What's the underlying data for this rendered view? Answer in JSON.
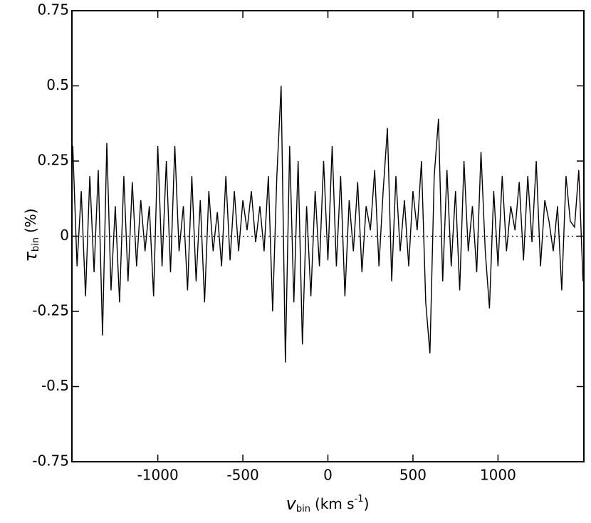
{
  "chart_data": {
    "type": "line",
    "x_label": {
      "symbol": "v",
      "subscript": "bin",
      "unit": "(km s",
      "superscript": "-1",
      "close": ")"
    },
    "y_label": {
      "symbol": "τ",
      "subscript": "bin",
      "unit": "(%)"
    },
    "xlim": [
      -1505,
      1505
    ],
    "ylim": [
      -0.75,
      0.75
    ],
    "xticks": [
      -1000,
      -500,
      0,
      500,
      1000
    ],
    "yticks": [
      -0.75,
      -0.5,
      -0.25,
      0,
      0.25,
      0.5,
      0.75
    ],
    "reference_line": 0,
    "x": [
      -1500,
      -1475,
      -1450,
      -1425,
      -1400,
      -1375,
      -1350,
      -1325,
      -1300,
      -1275,
      -1250,
      -1225,
      -1200,
      -1175,
      -1150,
      -1125,
      -1100,
      -1075,
      -1050,
      -1025,
      -1000,
      -975,
      -950,
      -925,
      -900,
      -875,
      -850,
      -825,
      -800,
      -775,
      -750,
      -725,
      -700,
      -675,
      -650,
      -625,
      -600,
      -575,
      -550,
      -525,
      -500,
      -475,
      -450,
      -425,
      -400,
      -375,
      -350,
      -325,
      -300,
      -275,
      -250,
      -225,
      -200,
      -175,
      -150,
      -125,
      -100,
      -75,
      -50,
      -25,
      0,
      25,
      50,
      75,
      100,
      125,
      150,
      175,
      200,
      225,
      250,
      275,
      300,
      325,
      350,
      375,
      400,
      425,
      450,
      475,
      500,
      525,
      550,
      575,
      600,
      625,
      650,
      675,
      700,
      725,
      750,
      775,
      800,
      825,
      850,
      875,
      900,
      925,
      950,
      975,
      1000,
      1025,
      1050,
      1075,
      1100,
      1125,
      1150,
      1175,
      1200,
      1225,
      1250,
      1275,
      1300,
      1325,
      1350,
      1375,
      1400,
      1425,
      1450,
      1475,
      1500
    ],
    "series": [
      {
        "color": "#000000",
        "values": [
          0.3,
          -0.1,
          0.15,
          -0.2,
          0.2,
          -0.12,
          0.22,
          -0.33,
          0.31,
          -0.18,
          0.1,
          -0.22,
          0.2,
          -0.15,
          0.18,
          -0.1,
          0.12,
          -0.05,
          0.1,
          -0.2,
          0.3,
          -0.1,
          0.25,
          -0.12,
          0.3,
          -0.05,
          0.1,
          -0.18,
          0.2,
          -0.15,
          0.12,
          -0.22,
          0.15,
          -0.05,
          0.08,
          -0.1,
          0.2,
          -0.08,
          0.15,
          -0.05,
          0.12,
          0.02,
          0.15,
          -0.02,
          0.1,
          -0.05,
          0.2,
          -0.25,
          0.2,
          0.5,
          -0.42,
          0.3,
          -0.22,
          0.25,
          -0.36,
          0.1,
          -0.2,
          0.15,
          -0.1,
          0.25,
          -0.08,
          0.3,
          -0.1,
          0.2,
          -0.2,
          0.12,
          -0.05,
          0.18,
          -0.12,
          0.1,
          0.02,
          0.22,
          -0.1,
          0.15,
          0.36,
          -0.15,
          0.2,
          -0.05,
          0.12,
          -0.1,
          0.15,
          0.02,
          0.25,
          -0.22,
          -0.39,
          0.2,
          0.39,
          -0.15,
          0.22,
          -0.1,
          0.15,
          -0.18,
          0.25,
          -0.05,
          0.1,
          -0.12,
          0.28,
          -0.05,
          -0.24,
          0.15,
          -0.1,
          0.2,
          -0.05,
          0.1,
          0.02,
          0.18,
          -0.08,
          0.2,
          -0.02,
          0.25,
          -0.1,
          0.12,
          0.05,
          -0.05,
          0.1,
          -0.18,
          0.2,
          0.05,
          0.03,
          0.22,
          -0.15
        ]
      }
    ]
  }
}
